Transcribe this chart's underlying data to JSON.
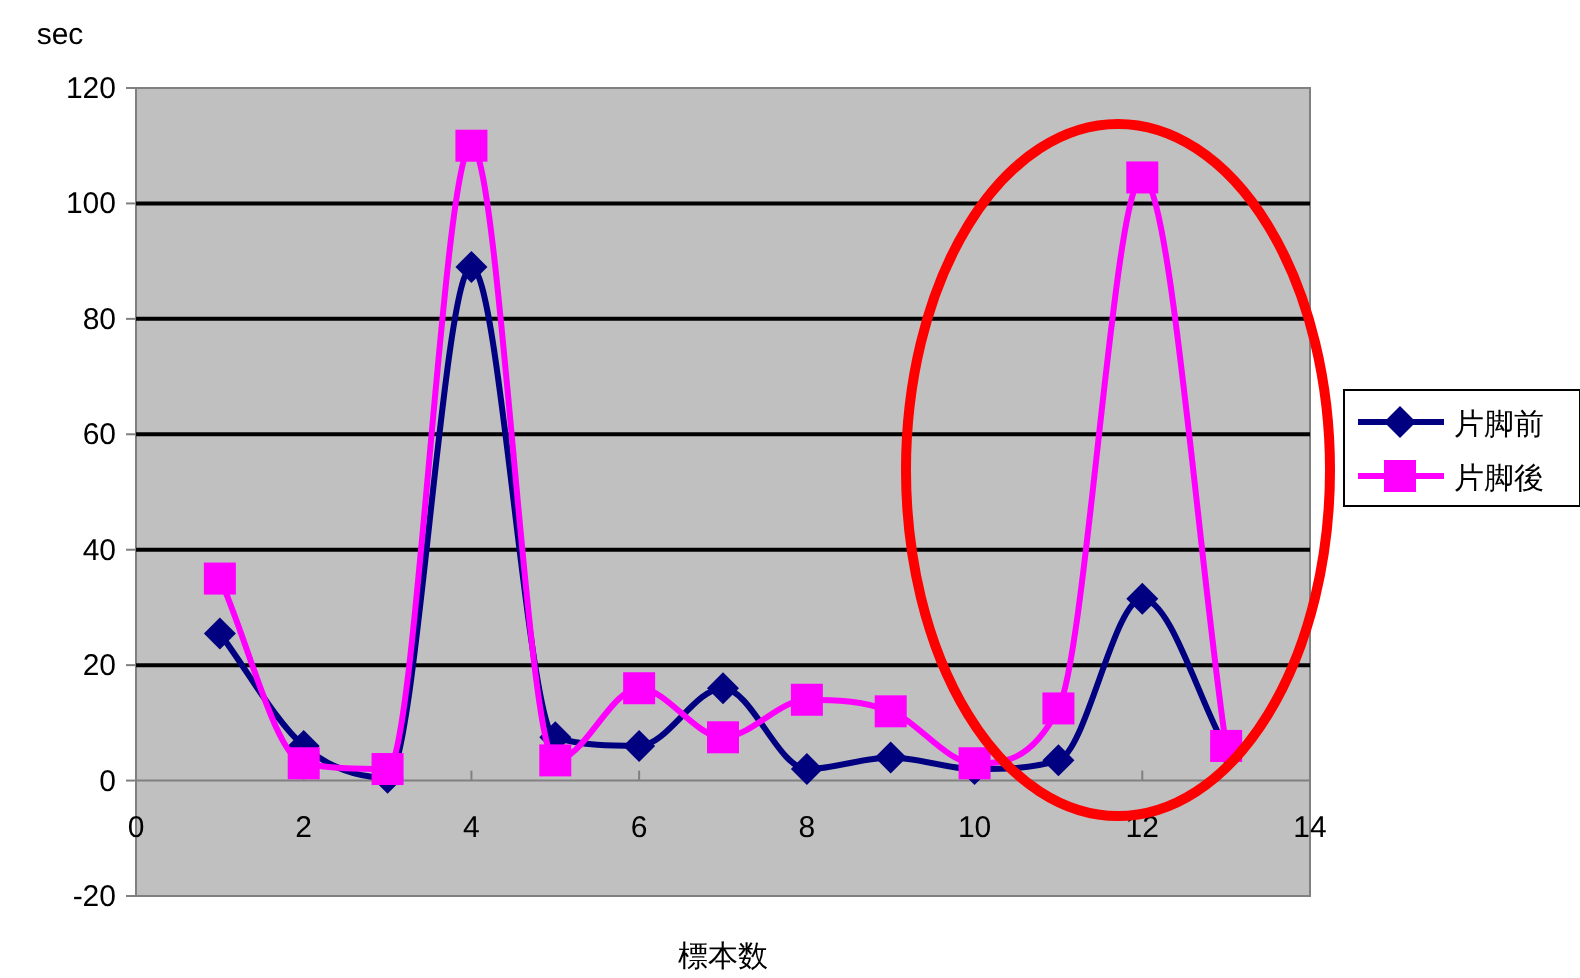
{
  "chart_data": {
    "type": "line",
    "ylabel": "sec",
    "xlabel": "標本数",
    "x": [
      1,
      2,
      3,
      4,
      5,
      6,
      7,
      8,
      9,
      10,
      11,
      12,
      13
    ],
    "series": [
      {
        "name": "片脚前",
        "color": "#000080",
        "marker": "diamond",
        "values": [
          25.5,
          6,
          0.5,
          89,
          7.5,
          6,
          16,
          2,
          4,
          2,
          3.5,
          31.5,
          5.5
        ]
      },
      {
        "name": "片脚後",
        "color": "#ff00ff",
        "marker": "square",
        "values": [
          35,
          3,
          2,
          110,
          3.5,
          16,
          7.5,
          14,
          12,
          3,
          12.5,
          104.5,
          6
        ]
      }
    ],
    "xlim": [
      0,
      14
    ],
    "xticks": [
      0,
      2,
      4,
      6,
      8,
      10,
      12,
      14
    ],
    "ylim": [
      -20,
      120
    ],
    "yticks": [
      -20,
      0,
      20,
      40,
      60,
      80,
      100,
      120
    ],
    "grid": "y",
    "legend": "right"
  }
}
